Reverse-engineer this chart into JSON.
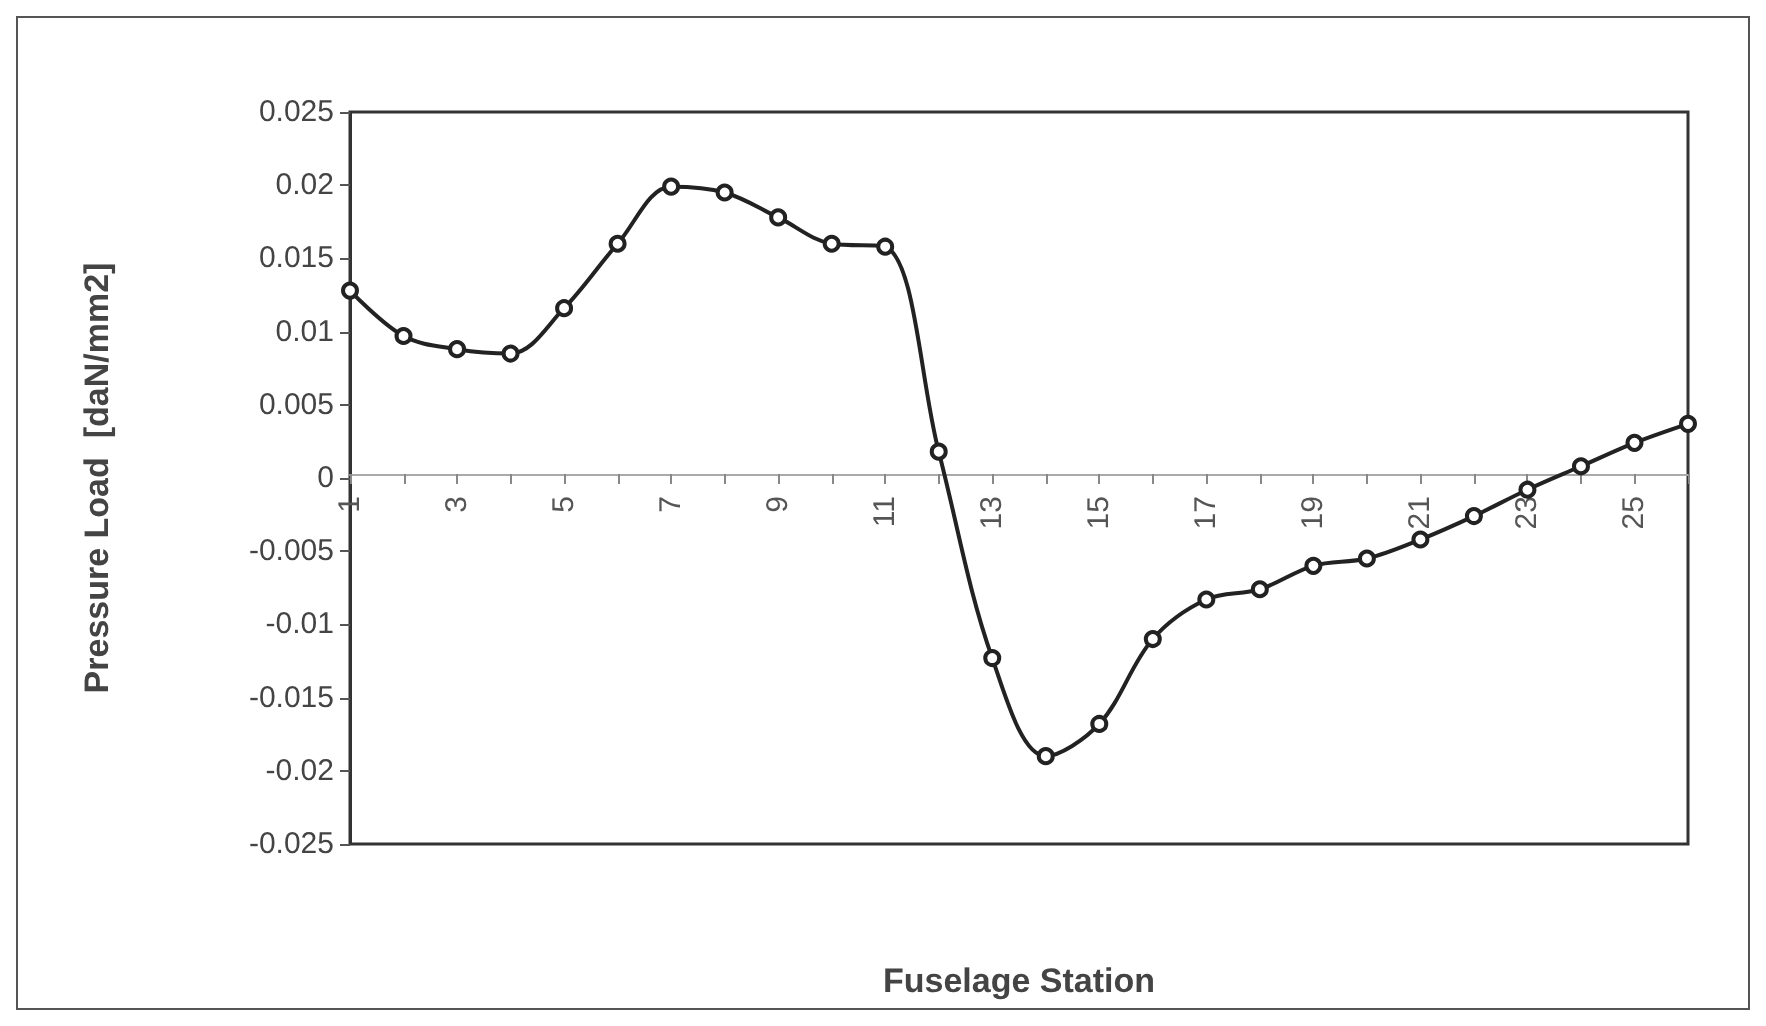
{
  "chart_data": {
    "type": "line",
    "xlabel": "Fuselage Station",
    "ylabel": "Pressure Load  [daN/mm2]",
    "categories": [
      "1",
      null,
      "3",
      null,
      "5",
      null,
      "7",
      null,
      "9",
      null,
      "11",
      null,
      "13",
      null,
      "15",
      null,
      "17",
      null,
      "19",
      null,
      "21",
      null,
      "23",
      null,
      "25",
      null
    ],
    "series": [
      {
        "color": "#222222",
        "values": [
          0.0128,
          0.0097,
          0.0088,
          0.0085,
          0.0116,
          0.016,
          0.0199,
          0.0195,
          0.0178,
          0.016,
          0.0158,
          0.0018,
          -0.0123,
          -0.019,
          -0.0168,
          -0.011,
          -0.0083,
          -0.0076,
          -0.006,
          -0.0055,
          -0.0042,
          -0.0026,
          -0.0008,
          0.0008,
          0.0024,
          0.0037
        ]
      }
    ],
    "ylim": [
      -0.025,
      0.025
    ],
    "yticks": [
      -0.025,
      -0.02,
      -0.015,
      -0.01,
      -0.005,
      0,
      0.005,
      0.01,
      0.015,
      0.02,
      0.025
    ],
    "marker": "circle",
    "line_style": "solid",
    "grid": false
  }
}
